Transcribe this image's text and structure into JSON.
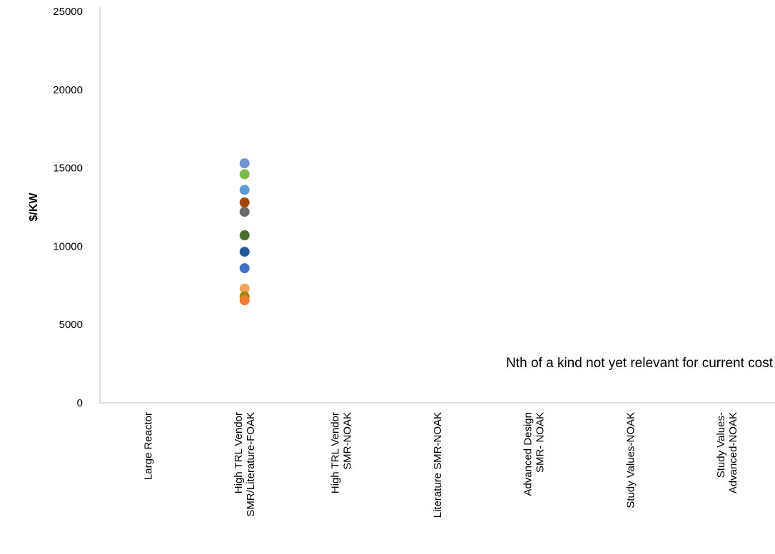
{
  "chart_data": {
    "type": "scatter",
    "title": "",
    "xlabel": "",
    "ylabel": "$/KW",
    "ylim": [
      0,
      25000
    ],
    "yticks": [
      0,
      5000,
      10000,
      15000,
      20000,
      25000
    ],
    "grid": false,
    "legend": "none",
    "categories": [
      [
        "Large Reactor"
      ],
      [
        "High TRL Vendor",
        "SMR/Literature-FOAK"
      ],
      [
        "High TRL Vendor",
        "SMR-NOAK"
      ],
      [
        "Literature SMR-NOAK"
      ],
      [
        "Advanced Design",
        "SMR- NOAK"
      ],
      [
        "Study Values-NOAK"
      ],
      [
        "Study Values-",
        "Advanced-NOAK"
      ]
    ],
    "points": [
      {
        "category_index": 1,
        "y": 15300,
        "color": "#7394cf"
      },
      {
        "category_index": 1,
        "y": 14600,
        "color": "#7cb84c"
      },
      {
        "category_index": 1,
        "y": 13600,
        "color": "#5a9bd5"
      },
      {
        "category_index": 1,
        "y": 12800,
        "color": "#9e480e"
      },
      {
        "category_index": 1,
        "y": 12200,
        "color": "#6b6b6b"
      },
      {
        "category_index": 1,
        "y": 10700,
        "color": "#4a6b2a"
      },
      {
        "category_index": 1,
        "y": 9650,
        "color": "#235a9a"
      },
      {
        "category_index": 1,
        "y": 8600,
        "color": "#4472c4"
      },
      {
        "category_index": 1,
        "y": 7300,
        "color": "#f4a261"
      },
      {
        "category_index": 1,
        "y": 6800,
        "color": "#998a10"
      },
      {
        "category_index": 1,
        "y": 6550,
        "color": "#ed7d31"
      }
    ],
    "annotation": "Nth of a kind not yet relevant for current cost"
  }
}
